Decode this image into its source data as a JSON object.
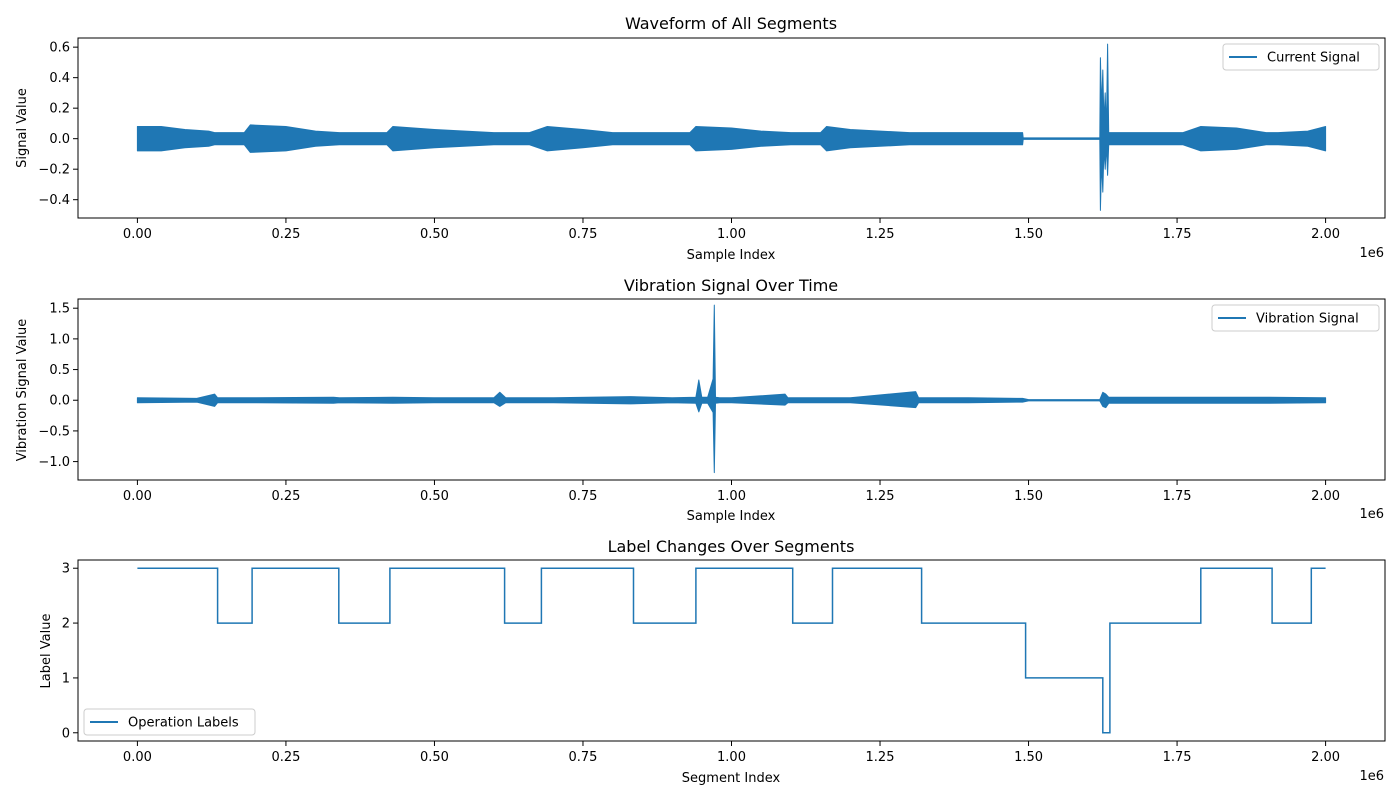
{
  "chart_data": [
    {
      "type": "line",
      "title": "Waveform of All Segments",
      "xlabel": "Sample Index",
      "ylabel": "Signal Value",
      "x_offset_text": "1e6",
      "xlim": [
        -0.1,
        2.1
      ],
      "ylim": [
        -0.52,
        0.66
      ],
      "xticks": [
        0.0,
        0.25,
        0.5,
        0.75,
        1.0,
        1.25,
        1.5,
        1.75,
        2.0
      ],
      "xtick_labels": [
        "0.00",
        "0.25",
        "0.50",
        "0.75",
        "1.00",
        "1.25",
        "1.50",
        "1.75",
        "2.00"
      ],
      "yticks": [
        -0.4,
        -0.2,
        0.0,
        0.2,
        0.4,
        0.6
      ],
      "ytick_labels": [
        "−0.4",
        "−0.2",
        "0.0",
        "0.2",
        "0.4",
        "0.6"
      ],
      "legend_position": "top-right",
      "grid": false,
      "color": "#1f77b4",
      "series": [
        {
          "name": "Current Signal",
          "style": "envelope",
          "x": [
            0.0,
            0.04,
            0.08,
            0.12,
            0.13,
            0.18,
            0.19,
            0.25,
            0.3,
            0.34,
            0.36,
            0.42,
            0.43,
            0.5,
            0.6,
            0.62,
            0.66,
            0.69,
            0.75,
            0.8,
            0.84,
            0.87,
            0.93,
            0.94,
            1.0,
            1.05,
            1.1,
            1.15,
            1.16,
            1.2,
            1.3,
            1.49,
            1.491,
            1.62,
            1.621,
            1.623,
            1.625,
            1.627,
            1.629,
            1.631,
            1.633,
            1.635,
            1.64,
            1.7,
            1.76,
            1.79,
            1.85,
            1.9,
            1.92,
            1.97,
            2.0
          ],
          "upper": [
            0.08,
            0.08,
            0.06,
            0.05,
            0.04,
            0.04,
            0.09,
            0.08,
            0.05,
            0.04,
            0.04,
            0.04,
            0.08,
            0.06,
            0.04,
            0.04,
            0.04,
            0.08,
            0.06,
            0.04,
            0.04,
            0.04,
            0.04,
            0.08,
            0.07,
            0.05,
            0.04,
            0.04,
            0.08,
            0.06,
            0.04,
            0.04,
            0.005,
            0.005,
            0.53,
            0.2,
            0.45,
            0.1,
            0.3,
            0.05,
            0.62,
            0.04,
            0.04,
            0.04,
            0.04,
            0.08,
            0.07,
            0.04,
            0.04,
            0.05,
            0.08
          ],
          "lower": [
            -0.08,
            -0.08,
            -0.06,
            -0.05,
            -0.04,
            -0.04,
            -0.09,
            -0.08,
            -0.05,
            -0.04,
            -0.04,
            -0.04,
            -0.08,
            -0.06,
            -0.04,
            -0.04,
            -0.04,
            -0.08,
            -0.06,
            -0.04,
            -0.04,
            -0.04,
            -0.04,
            -0.08,
            -0.07,
            -0.05,
            -0.04,
            -0.04,
            -0.08,
            -0.06,
            -0.04,
            -0.04,
            -0.005,
            -0.005,
            -0.47,
            -0.15,
            -0.35,
            -0.06,
            -0.2,
            -0.04,
            -0.24,
            -0.04,
            -0.04,
            -0.04,
            -0.04,
            -0.08,
            -0.07,
            -0.04,
            -0.04,
            -0.05,
            -0.08
          ]
        }
      ]
    },
    {
      "type": "line",
      "title": "Vibration Signal Over Time",
      "xlabel": "Sample Index",
      "ylabel": "Vibration Signal Value",
      "x_offset_text": "1e6",
      "xlim": [
        -0.1,
        2.1
      ],
      "ylim": [
        -1.3,
        1.65
      ],
      "xticks": [
        0.0,
        0.25,
        0.5,
        0.75,
        1.0,
        1.25,
        1.5,
        1.75,
        2.0
      ],
      "xtick_labels": [
        "0.00",
        "0.25",
        "0.50",
        "0.75",
        "1.00",
        "1.25",
        "1.50",
        "1.75",
        "2.00"
      ],
      "yticks": [
        -1.0,
        -0.5,
        0.0,
        0.5,
        1.0,
        1.5
      ],
      "ytick_labels": [
        "−1.0",
        "−0.5",
        "0.0",
        "0.5",
        "1.0",
        "1.5"
      ],
      "legend_position": "top-right",
      "grid": false,
      "color": "#1f77b4",
      "series": [
        {
          "name": "Vibration Signal",
          "style": "envelope",
          "x": [
            0.0,
            0.1,
            0.13,
            0.135,
            0.2,
            0.33,
            0.34,
            0.43,
            0.5,
            0.6,
            0.61,
            0.62,
            0.7,
            0.83,
            0.9,
            0.94,
            0.945,
            0.95,
            0.96,
            0.969,
            0.971,
            0.973,
            0.98,
            1.0,
            1.09,
            1.095,
            1.2,
            1.31,
            1.315,
            1.4,
            1.49,
            1.5,
            1.62,
            1.625,
            1.63,
            1.635,
            1.7,
            1.8,
            1.9,
            2.0
          ],
          "upper": [
            0.04,
            0.03,
            0.1,
            0.04,
            0.04,
            0.05,
            0.04,
            0.05,
            0.04,
            0.04,
            0.13,
            0.04,
            0.04,
            0.06,
            0.04,
            0.05,
            0.33,
            0.05,
            0.05,
            0.35,
            1.55,
            0.05,
            0.04,
            0.04,
            0.1,
            0.04,
            0.04,
            0.14,
            0.04,
            0.04,
            0.03,
            0.01,
            0.01,
            0.13,
            0.1,
            0.05,
            0.05,
            0.05,
            0.05,
            0.04
          ],
          "lower": [
            -0.04,
            -0.03,
            -0.1,
            -0.04,
            -0.04,
            -0.05,
            -0.04,
            -0.05,
            -0.04,
            -0.04,
            -0.1,
            -0.04,
            -0.04,
            -0.06,
            -0.04,
            -0.05,
            -0.19,
            -0.05,
            -0.05,
            -0.2,
            -1.18,
            -0.05,
            -0.04,
            -0.04,
            -0.08,
            -0.04,
            -0.04,
            -0.12,
            -0.04,
            -0.04,
            -0.03,
            -0.01,
            -0.01,
            -0.1,
            -0.12,
            -0.05,
            -0.05,
            -0.05,
            -0.05,
            -0.04
          ]
        }
      ]
    },
    {
      "type": "line",
      "title": "Label Changes Over Segments",
      "xlabel": "Segment Index",
      "ylabel": "Label Value",
      "x_offset_text": "1e6",
      "xlim": [
        -0.1,
        2.1
      ],
      "ylim": [
        -0.15,
        3.15
      ],
      "xticks": [
        0.0,
        0.25,
        0.5,
        0.75,
        1.0,
        1.25,
        1.5,
        1.75,
        2.0
      ],
      "xtick_labels": [
        "0.00",
        "0.25",
        "0.50",
        "0.75",
        "1.00",
        "1.25",
        "1.50",
        "1.75",
        "2.00"
      ],
      "yticks": [
        0,
        1,
        2,
        3
      ],
      "ytick_labels": [
        "0",
        "1",
        "2",
        "3"
      ],
      "legend_position": "bottom-left",
      "grid": false,
      "color": "#1f77b4",
      "series": [
        {
          "name": "Operation Labels",
          "style": "step",
          "x": [
            0.0,
            0.135,
            0.193,
            0.339,
            0.425,
            0.618,
            0.68,
            0.835,
            0.94,
            1.103,
            1.17,
            1.32,
            1.495,
            1.625,
            1.637,
            1.79,
            1.91,
            1.976,
            2.0
          ],
          "y": [
            3,
            2,
            3,
            2,
            3,
            2,
            3,
            2,
            3,
            2,
            3,
            2,
            1,
            0,
            2,
            3,
            2,
            3,
            3
          ]
        }
      ]
    }
  ]
}
